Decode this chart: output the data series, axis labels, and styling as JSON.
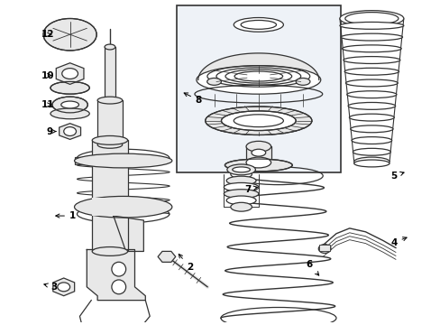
{
  "bg_color": "#ffffff",
  "line_color": "#333333",
  "fill_light": "#e8e8e8",
  "inset_bg": "#e8eef5",
  "fig_width": 4.89,
  "fig_height": 3.6,
  "dpi": 100,
  "font_size": 7.5
}
